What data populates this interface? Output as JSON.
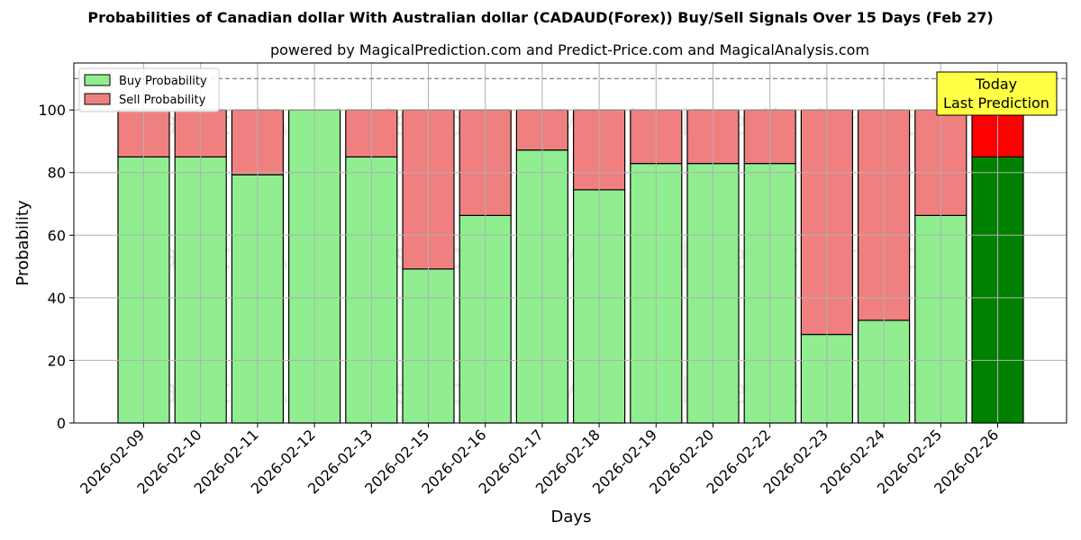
{
  "header": {
    "title": "Probabilities of Canadian dollar With Australian dollar (CADAUD(Forex)) Buy/Sell Signals Over 15 Days (Feb 27)",
    "subtitle": "powered by MagicalPrediction.com and Predict-Price.com and MagicalAnalysis.com"
  },
  "watermarks": [
    "MagicalAnalysis.com",
    "MagicalPrediction.com"
  ],
  "chart_data": {
    "type": "bar",
    "stacked": true,
    "categories": [
      "2026-02-09",
      "2026-02-10",
      "2026-02-11",
      "2026-02-12",
      "2026-02-13",
      "2026-02-15",
      "2026-02-16",
      "2026-02-17",
      "2026-02-18",
      "2026-02-19",
      "2026-02-20",
      "2026-02-22",
      "2026-02-23",
      "2026-02-24",
      "2026-02-25",
      "2026-02-26"
    ],
    "series": [
      {
        "name": "Buy Probability",
        "values": [
          85,
          85,
          79.3,
          100,
          85,
          49.2,
          66.3,
          87.2,
          74.5,
          82.9,
          82.9,
          82.9,
          28.3,
          32.8,
          66.3,
          85
        ],
        "color": "#90ee90",
        "highlight_color": "#008000"
      },
      {
        "name": "Sell Probability",
        "values": [
          15,
          15,
          20.7,
          0,
          15,
          50.8,
          33.7,
          12.8,
          25.5,
          17.1,
          17.1,
          17.1,
          71.7,
          67.2,
          33.7,
          15
        ],
        "color": "#f08080",
        "highlight_color": "#ff0000"
      }
    ],
    "highlight_index": 15,
    "xlabel": "Days",
    "ylabel": "Probability",
    "ylim": [
      0,
      115
    ],
    "yticks": [
      0,
      20,
      40,
      60,
      80,
      100
    ],
    "reference_line": 110,
    "grid": true,
    "legend_position": "top-left",
    "annotation": {
      "lines": [
        "Today",
        "Last Prediction"
      ],
      "background": "#ffff44"
    }
  }
}
